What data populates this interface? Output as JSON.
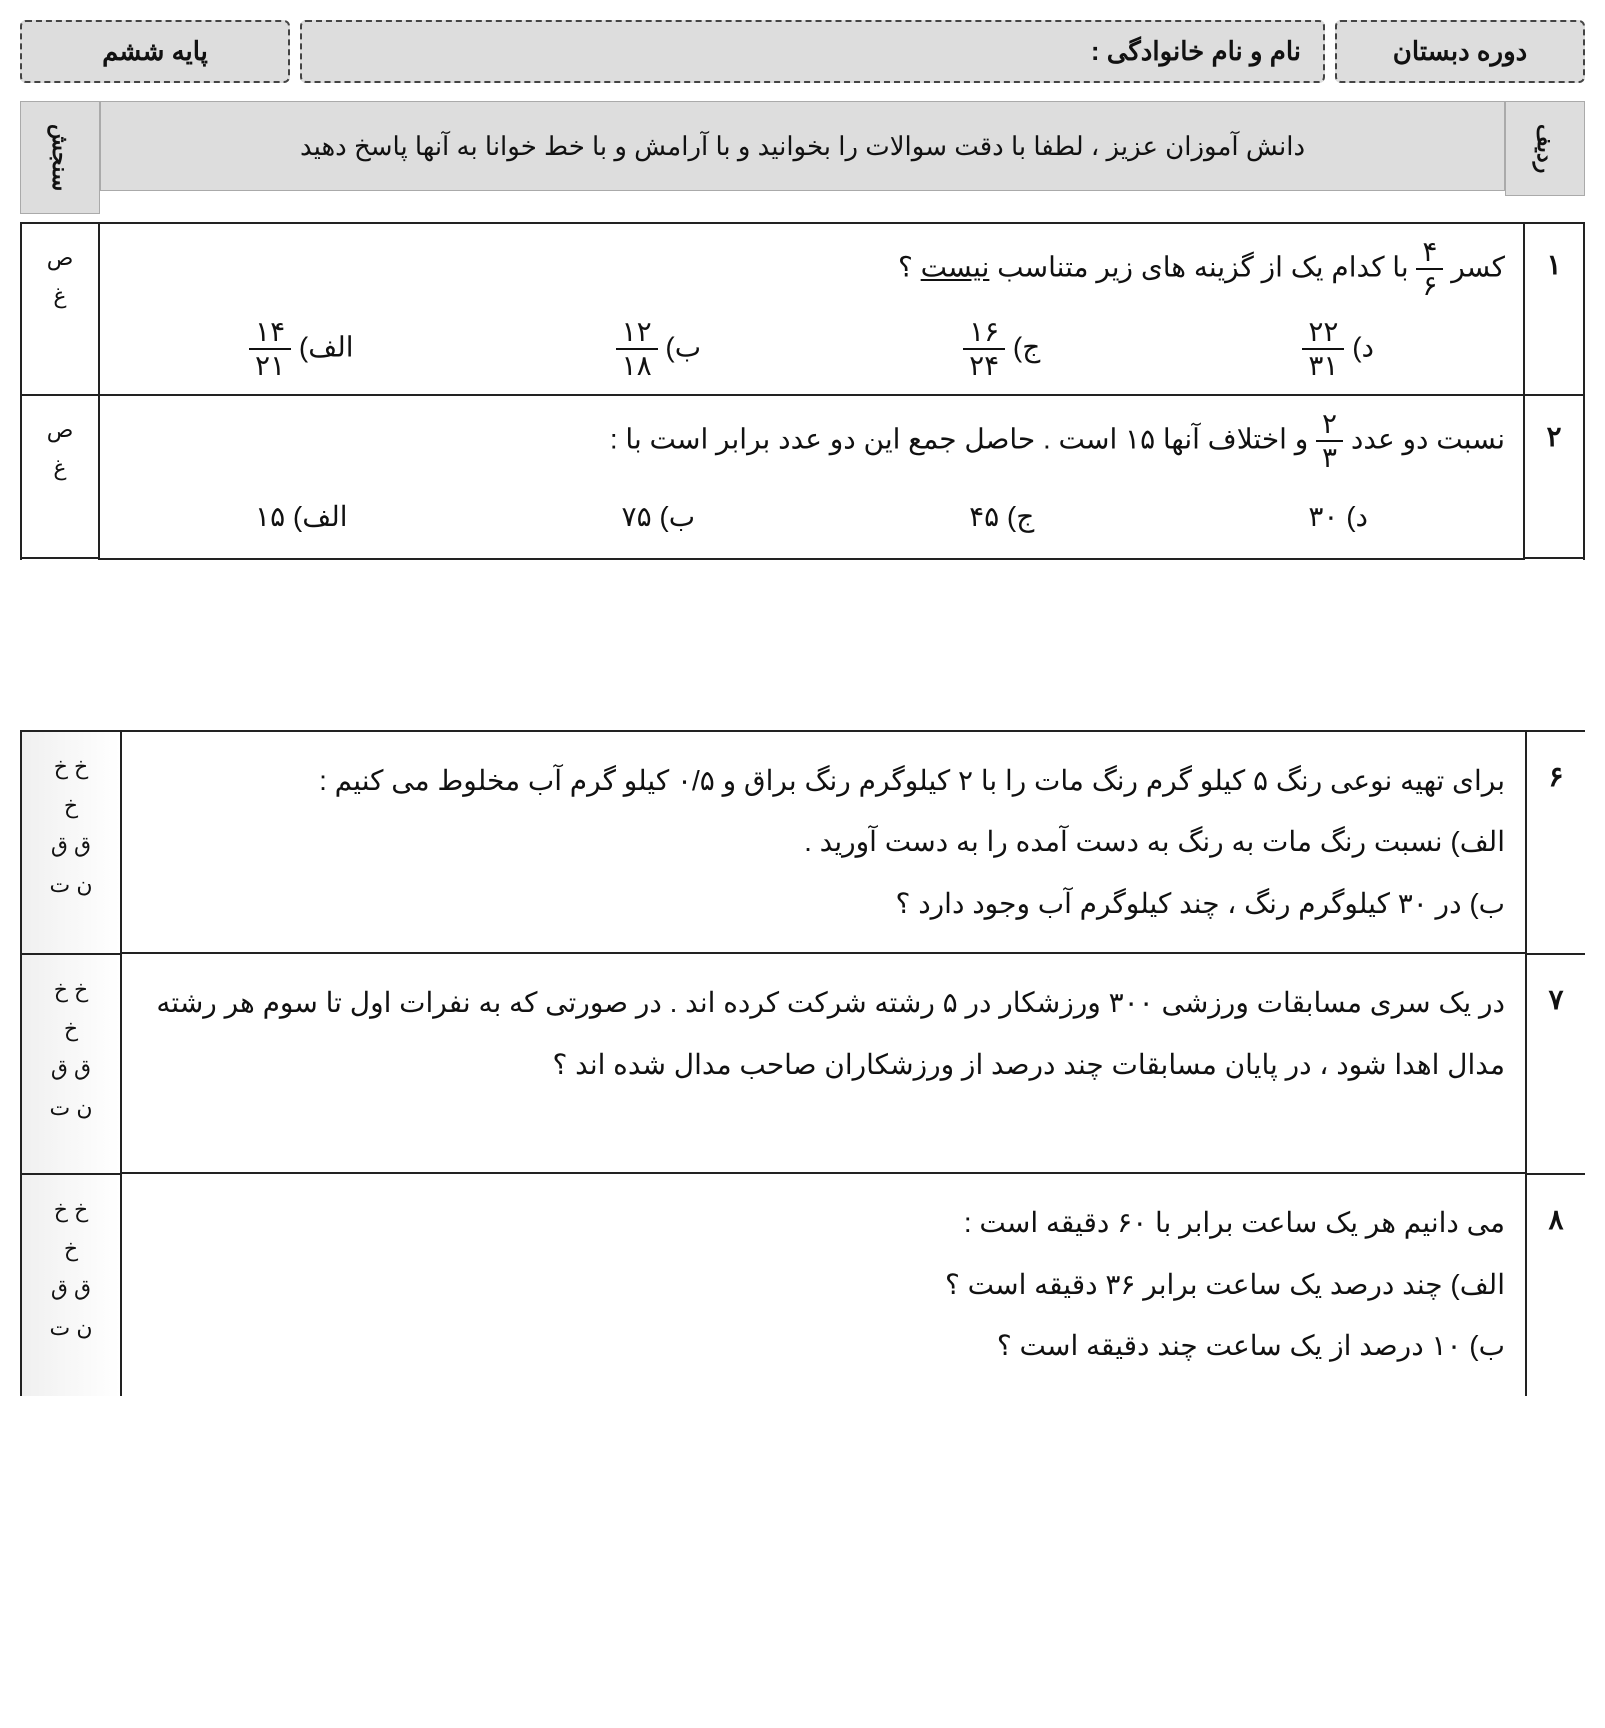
{
  "colors": {
    "bg": "#ffffff",
    "panel": "#dddddd",
    "border": "#222222",
    "text": "#111111"
  },
  "fonts": {
    "base_size": 28,
    "header_size": 26
  },
  "top": {
    "course": "دوره دبستان",
    "name_label": "نام و نام خانوادگی :",
    "grade": "پایه ششم"
  },
  "header": {
    "row_label": "ردیف",
    "score_label": "سنجش",
    "instruction": "دانش آموزان عزیز ، لطفا با دقت سوالات را بخوانید و با آرامش و با خط خوانا به آنها پاسخ دهید"
  },
  "questions_top": [
    {
      "num": "۱",
      "score": [
        "ص",
        "غ"
      ],
      "prompt_pre": "کسر ",
      "frac": {
        "n": "۴",
        "d": "۶"
      },
      "prompt_post": " با کدام یک از گزینه های زیر متناسب ",
      "underline": "نیست",
      "prompt_end": " ؟",
      "options": [
        {
          "label": "الف)",
          "n": "۱۴",
          "d": "۲۱"
        },
        {
          "label": "ب)",
          "n": "۱۲",
          "d": "۱۸"
        },
        {
          "label": "ج)",
          "n": "۱۶",
          "d": "۲۴"
        },
        {
          "label": "د)",
          "n": "۲۲",
          "d": "۳۱"
        }
      ]
    },
    {
      "num": "۲",
      "score": [
        "ص",
        "غ"
      ],
      "prompt_pre": "نسبت دو عدد ",
      "frac": {
        "n": "۲",
        "d": "۳"
      },
      "prompt_post": " و اختلاف آنها ۱۵ است . حاصل جمع این دو عدد برابر است با :",
      "underline": "",
      "prompt_end": "",
      "options": [
        {
          "label": "الف)",
          "text": "۱۵"
        },
        {
          "label": "ب)",
          "text": "۷۵"
        },
        {
          "label": "ج)",
          "text": "۴۵"
        },
        {
          "label": "د)",
          "text": "۳۰"
        }
      ]
    }
  ],
  "questions_bottom": [
    {
      "num": "۶",
      "score": [
        "خ خ",
        "خ",
        "ق ق",
        "ن ت"
      ],
      "lines": [
        "برای تهیه نوعی رنگ ۵ کیلو گرم رنگ مات را با ۲ کیلوگرم رنگ براق و ۰/۵ کیلو گرم آب مخلوط می کنیم :",
        "الف) نسبت رنگ مات به رنگ به دست آمده را به دست آورید .",
        "ب) در ۳۰ کیلوگرم رنگ ، چند کیلوگرم آب وجود دارد ؟"
      ]
    },
    {
      "num": "۷",
      "score": [
        "خ خ",
        "خ",
        "ق ق",
        "ن ت"
      ],
      "lines": [
        "در یک سری مسابقات ورزشی ۳۰۰ ورزشکار در ۵ رشته شرکت کرده اند . در صورتی که به نفرات اول تا سوم هر رشته مدال اهدا شود ، در پایان مسابقات چند درصد از ورزشکاران صاحب مدال شده اند ؟"
      ]
    },
    {
      "num": "۸",
      "score": [
        "خ خ",
        "خ",
        "ق ق",
        "ن ت"
      ],
      "lines": [
        "می دانیم هر یک ساعت برابر با ۶۰ دقیقه است :",
        "الف) چند درصد یک ساعت برابر ۳۶ دقیقه است ؟",
        "ب) ۱۰ درصد از یک ساعت چند دقیقه است ؟"
      ]
    }
  ]
}
